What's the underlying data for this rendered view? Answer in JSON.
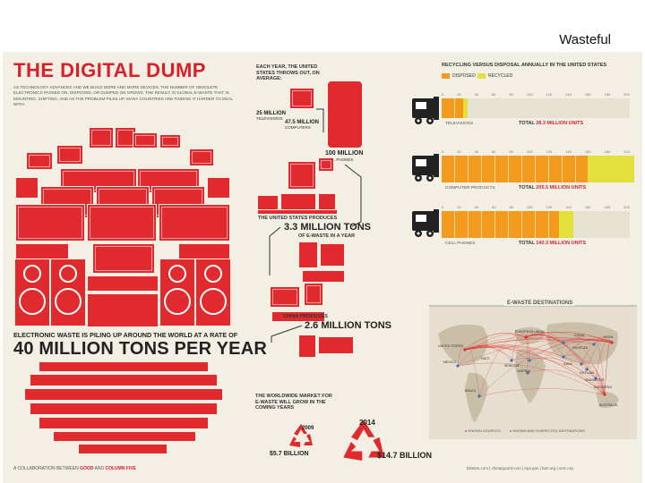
{
  "slide": {
    "title": "Wasteful"
  },
  "poster": {
    "title": "THE DIGITAL DUMP",
    "intro": "AS TECHNOLOGY ADVANCES AND WE BUILD MORE AND MORE DEVICES, THE NUMBER OF OBSOLETE ELECTRONICS PASSED ON, DISPOSED, OR DUMPED ON GROWS. THE RESULT IS GLOBAL E-WASTE THAT IS MOUNTING, SHIFTING, AND AS THE PROBLEM PILES UP, MANY COUNTRIES ARE FINDING IT HARDER TO DEAL WITH.",
    "pile_caption": "ELECTRONIC WASTE IS PILING UP AROUND THE WORLD AT A RATE OF",
    "pile_amount": "40 MILLION TONS PER YEAR",
    "collab_prefix": "A COLLABORATION BETWEEN",
    "collab_a": "GOOD",
    "collab_and": "AND",
    "collab_b": "COLUMN FIVE"
  },
  "usage": {
    "heading": "EACH YEAR, THE UNITED STATES THROWS OUT, ON AVERAGE:",
    "tv_amount": "25 MILLION",
    "tv_label": "TELEVISIONS",
    "pc_amount": "47.5 MILLION",
    "pc_label": "COMPUTERS",
    "phone_amount": "100 MILLION",
    "phone_label": "CELL PHONES"
  },
  "production": {
    "us_caption": "THE UNITED STATES PRODUCES",
    "us_amount": "3.3 MILLION TONS",
    "us_suffix": "OF E-WASTE IN A YEAR",
    "china_caption": "CHINA PRODUCES",
    "china_amount": "2.6 MILLION TONS"
  },
  "market": {
    "caption": "THE WORLDWIDE MARKET FOR E-WASTE WILL GROW IN THE COMING YEARS",
    "year_a": "2009",
    "value_a": "$5.7 BILLION",
    "year_b": "2014",
    "value_b": "$14.7 BILLION"
  },
  "recycling": {
    "title": "RECYCLING VERSUS DISPOSAL ANNUALLY IN THE UNITED STATES",
    "legend": [
      "DISPOSED",
      "RECYCLED"
    ],
    "colors": {
      "disposed": "#f39a1d",
      "recycled": "#e4e03b"
    },
    "ticks": [
      "0",
      "20",
      "40",
      "60",
      "80",
      "100",
      "120",
      "140",
      "160",
      "180",
      "200"
    ],
    "rows": [
      {
        "label": "TELEVISIONS",
        "total_label": "TOTAL",
        "total": "28.3 MILLION UNITS",
        "disposed": 23,
        "recycled": 5
      },
      {
        "label": "COMPUTER PRODUCTS",
        "total_label": "TOTAL",
        "total": "205.5 MILLION UNITS",
        "disposed": 155,
        "recycled": 50
      },
      {
        "label": "CELL PHONES",
        "total_label": "TOTAL",
        "total": "140.3 MILLION UNITS",
        "disposed": 125,
        "recycled": 15
      }
    ]
  },
  "destinations": {
    "title": "E-WASTE DESTINATIONS",
    "places": [
      "EUROPEAN UNION",
      "UNITED STATES",
      "MEXICO",
      "HAITI",
      "SENEGAL",
      "NIGERIA",
      "BRAZIL",
      "INDIA",
      "CHINA",
      "JAPAN",
      "PAKISTAN",
      "VIETNAM",
      "SINGAPORE",
      "INDONESIA",
      "AUSTRALIA"
    ],
    "legend_a": "KNOWN SOURCES",
    "legend_b": "KNOWN AND SUSPECTED DESTINATIONS"
  },
  "footer": {
    "text": "bbsites.com  |  chinaiguard.com  |  epa.gov  |  ban.org  |  svtc.org"
  }
}
